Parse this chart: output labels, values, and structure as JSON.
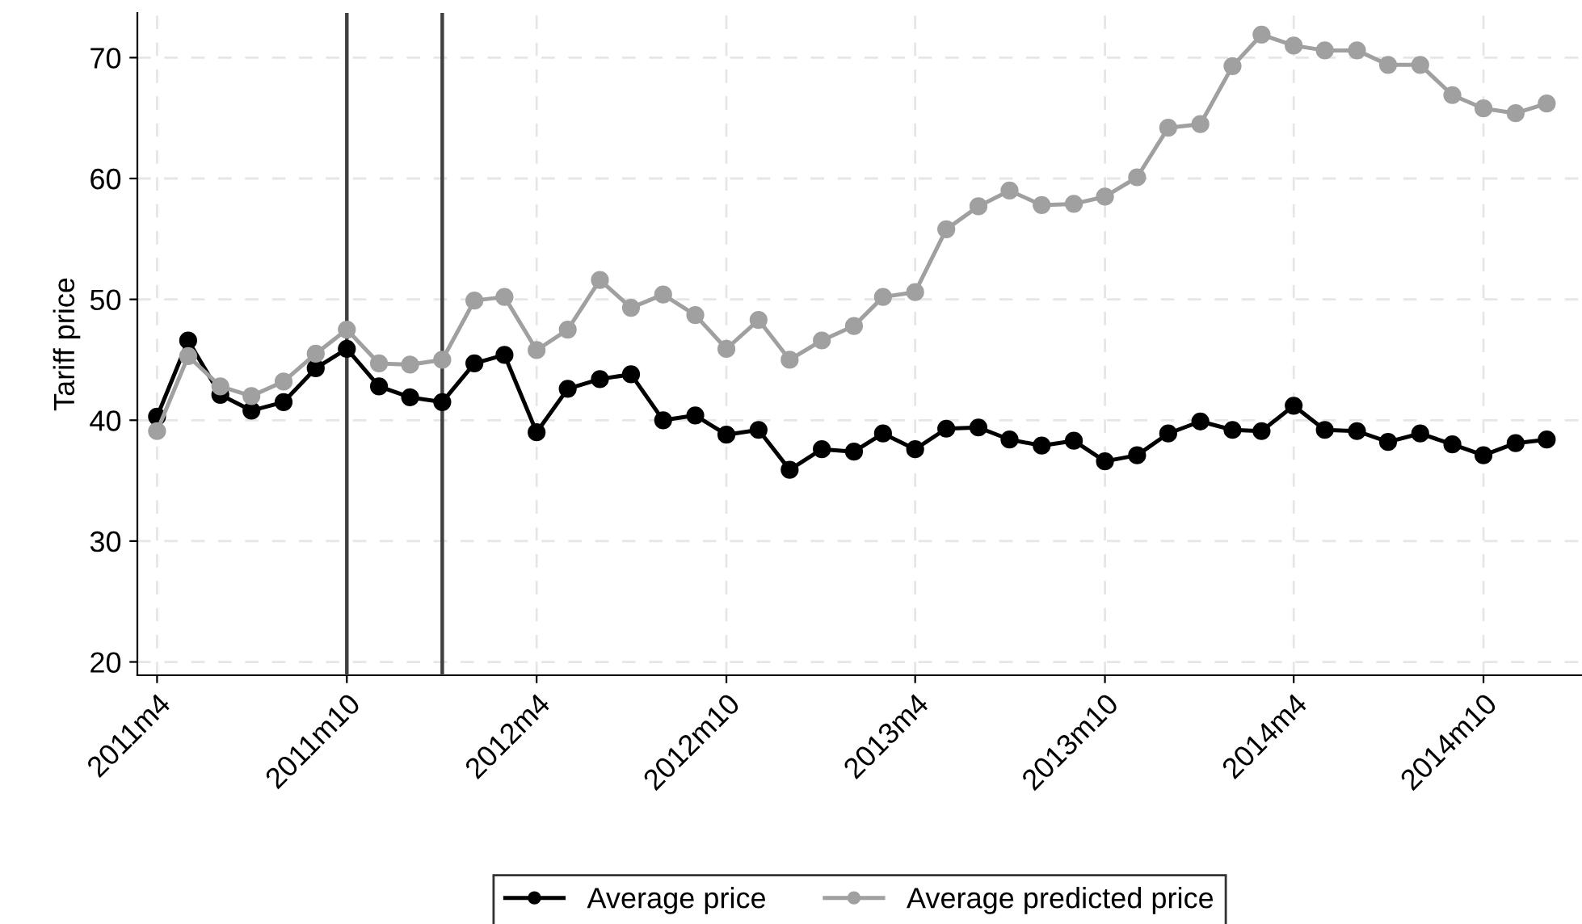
{
  "chart_data": {
    "type": "line",
    "ylabel": "Tariff price",
    "x": [
      "2011-04",
      "2011-05",
      "2011-06",
      "2011-07",
      "2011-08",
      "2011-09",
      "2011-10",
      "2011-11",
      "2011-12",
      "2012-01",
      "2012-02",
      "2012-03",
      "2012-04",
      "2012-05",
      "2012-06",
      "2012-07",
      "2012-08",
      "2012-09",
      "2012-10",
      "2012-11",
      "2012-12",
      "2013-01",
      "2013-02",
      "2013-03",
      "2013-04",
      "2013-05",
      "2013-06",
      "2013-07",
      "2013-08",
      "2013-09",
      "2013-10",
      "2013-11",
      "2013-12",
      "2014-01",
      "2014-02",
      "2014-03",
      "2014-04",
      "2014-05",
      "2014-06",
      "2014-07",
      "2014-08",
      "2014-09",
      "2014-10",
      "2014-11",
      "2014-12"
    ],
    "series": [
      {
        "name": "Average price",
        "color": "#000000",
        "values": [
          40.3,
          46.6,
          42.1,
          40.8,
          41.5,
          44.3,
          45.9,
          42.8,
          41.9,
          41.5,
          44.7,
          45.4,
          39.0,
          42.6,
          43.4,
          43.8,
          40.0,
          40.4,
          38.8,
          39.2,
          35.9,
          37.6,
          37.4,
          38.9,
          37.6,
          39.3,
          39.4,
          38.4,
          37.9,
          38.3,
          36.6,
          37.1,
          38.9,
          39.9,
          39.2,
          39.1,
          41.2,
          39.2,
          39.1,
          38.2,
          38.9,
          38.0,
          37.1,
          38.1,
          38.4
        ]
      },
      {
        "name": "Average predicted price",
        "color": "#a0a0a0",
        "values": [
          39.1,
          45.3,
          42.8,
          42.0,
          43.2,
          45.5,
          47.5,
          44.7,
          44.6,
          45.0,
          49.9,
          50.2,
          45.8,
          47.5,
          51.6,
          49.3,
          50.4,
          48.7,
          45.9,
          48.3,
          45.0,
          46.6,
          47.8,
          50.2,
          50.6,
          55.8,
          57.7,
          59.0,
          57.8,
          57.9,
          58.5,
          60.1,
          64.2,
          64.5,
          69.3,
          71.9,
          71.0,
          70.6,
          70.6,
          69.4,
          69.4,
          66.9,
          65.8,
          65.4,
          66.2
        ]
      }
    ],
    "xlim": [
      "2011-03-13",
      "2015-01-04"
    ],
    "xticks": [
      {
        "value": "2011-04",
        "label": "2011m4"
      },
      {
        "value": "2011-10",
        "label": "2011m10"
      },
      {
        "value": "2012-04",
        "label": "2012m4"
      },
      {
        "value": "2012-10",
        "label": "2012m10"
      },
      {
        "value": "2013-04",
        "label": "2013m4"
      },
      {
        "value": "2013-10",
        "label": "2013m10"
      },
      {
        "value": "2014-04",
        "label": "2014m4"
      },
      {
        "value": "2014-10",
        "label": "2014m10"
      }
    ],
    "ylim": [
      18.9,
      73.7
    ],
    "yticks": [
      20,
      30,
      40,
      50,
      60,
      70
    ],
    "ref_lines": [
      {
        "axis": "x",
        "value": "2011-10",
        "color": "#404040"
      },
      {
        "axis": "x",
        "value": "2012-01",
        "color": "#404040"
      }
    ],
    "grid": true,
    "legend": "bottom",
    "marker": "circle",
    "line_style": "solid"
  }
}
